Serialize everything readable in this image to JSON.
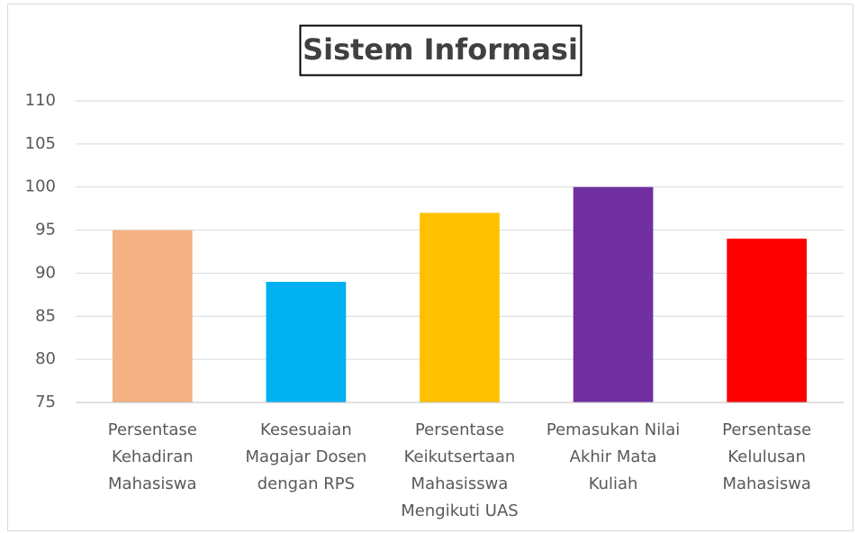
{
  "chart_data": {
    "type": "bar",
    "title": "Sistem Informasi",
    "categories": [
      [
        "Persentase",
        "Kehadiran",
        "Mahasiswa"
      ],
      [
        "Kesesuaian",
        "Magajar Dosen",
        "dengan RPS"
      ],
      [
        "Persentase",
        "Keikutsertaan",
        "Mahasisswa",
        "Mengikuti UAS"
      ],
      [
        "Pemasukan Nilai",
        "Akhir Mata",
        "Kuliah"
      ],
      [
        "Persentase",
        "Kelulusan",
        "Mahasiswa"
      ]
    ],
    "values": [
      95,
      89,
      97,
      100,
      94
    ],
    "colors": [
      "#f4b183",
      "#00b0f0",
      "#ffc000",
      "#7030a0",
      "#ff0000"
    ],
    "ylim": [
      75,
      110
    ],
    "yticks": [
      75,
      80,
      85,
      90,
      95,
      100,
      105,
      110
    ],
    "grid": true
  }
}
